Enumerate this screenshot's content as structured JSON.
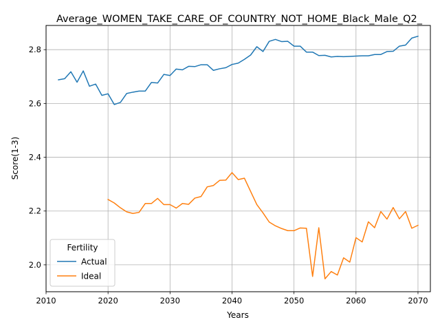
{
  "chart_data": {
    "type": "line",
    "title": "Average_WOMEN_TAKE_CARE_OF_COUNTRY_NOT_HOME_Black_Male_Q2_",
    "xlabel": "Years",
    "ylabel": "Score(1-3)",
    "xlim": [
      2010,
      2072
    ],
    "ylim": [
      1.9,
      2.89
    ],
    "xticks": [
      2010,
      2020,
      2030,
      2040,
      2050,
      2060,
      2070
    ],
    "yticks": [
      2.0,
      2.2,
      2.4,
      2.6,
      2.8
    ],
    "ytick_labels": [
      "2.0",
      "2.2",
      "2.4",
      "2.6",
      "2.8"
    ],
    "grid": true,
    "legend": {
      "title": "Fertility",
      "placement": "lower-left"
    },
    "series": [
      {
        "name": "Actual",
        "color": "#1f77b4",
        "x": [
          2012,
          2013,
          2014,
          2015,
          2016,
          2017,
          2018,
          2019,
          2020,
          2021,
          2022,
          2023,
          2024,
          2025,
          2026,
          2027,
          2028,
          2029,
          2030,
          2031,
          2032,
          2033,
          2034,
          2035,
          2036,
          2037,
          2038,
          2039,
          2040,
          2041,
          2042,
          2043,
          2044,
          2045,
          2046,
          2047,
          2048,
          2049,
          2050,
          2051,
          2052,
          2053,
          2054,
          2055,
          2056,
          2057,
          2058,
          2059,
          2060,
          2061,
          2062,
          2063,
          2064,
          2065,
          2066,
          2067,
          2068,
          2069,
          2070
        ],
        "values": [
          2.688,
          2.692,
          2.718,
          2.679,
          2.721,
          2.664,
          2.672,
          2.63,
          2.636,
          2.596,
          2.604,
          2.637,
          2.642,
          2.646,
          2.646,
          2.678,
          2.676,
          2.708,
          2.704,
          2.728,
          2.725,
          2.738,
          2.737,
          2.744,
          2.744,
          2.723,
          2.729,
          2.733,
          2.745,
          2.75,
          2.764,
          2.78,
          2.811,
          2.793,
          2.831,
          2.838,
          2.83,
          2.831,
          2.813,
          2.813,
          2.791,
          2.791,
          2.778,
          2.779,
          2.773,
          2.775,
          2.774,
          2.775,
          2.776,
          2.777,
          2.777,
          2.782,
          2.782,
          2.793,
          2.794,
          2.813,
          2.817,
          2.843,
          2.85
        ]
      },
      {
        "name": "Ideal",
        "color": "#ff7f0e",
        "x": [
          2020,
          2021,
          2022,
          2023,
          2024,
          2025,
          2026,
          2027,
          2028,
          2029,
          2030,
          2031,
          2032,
          2033,
          2034,
          2035,
          2036,
          2037,
          2038,
          2039,
          2040,
          2041,
          2042,
          2043,
          2044,
          2045,
          2046,
          2047,
          2048,
          2049,
          2050,
          2051,
          2052,
          2053,
          2054,
          2055,
          2056,
          2057,
          2058,
          2059,
          2060,
          2061,
          2062,
          2063,
          2064,
          2065,
          2066,
          2067,
          2068,
          2069,
          2070
        ],
        "values": [
          2.243,
          2.23,
          2.212,
          2.197,
          2.191,
          2.195,
          2.228,
          2.228,
          2.247,
          2.224,
          2.224,
          2.211,
          2.228,
          2.225,
          2.248,
          2.254,
          2.29,
          2.295,
          2.314,
          2.315,
          2.343,
          2.317,
          2.322,
          2.273,
          2.224,
          2.193,
          2.159,
          2.145,
          2.135,
          2.127,
          2.127,
          2.137,
          2.136,
          1.957,
          2.138,
          1.948,
          1.975,
          1.962,
          2.026,
          2.01,
          2.101,
          2.085,
          2.16,
          2.138,
          2.198,
          2.17,
          2.213,
          2.171,
          2.198,
          2.136,
          2.147
        ]
      }
    ]
  }
}
